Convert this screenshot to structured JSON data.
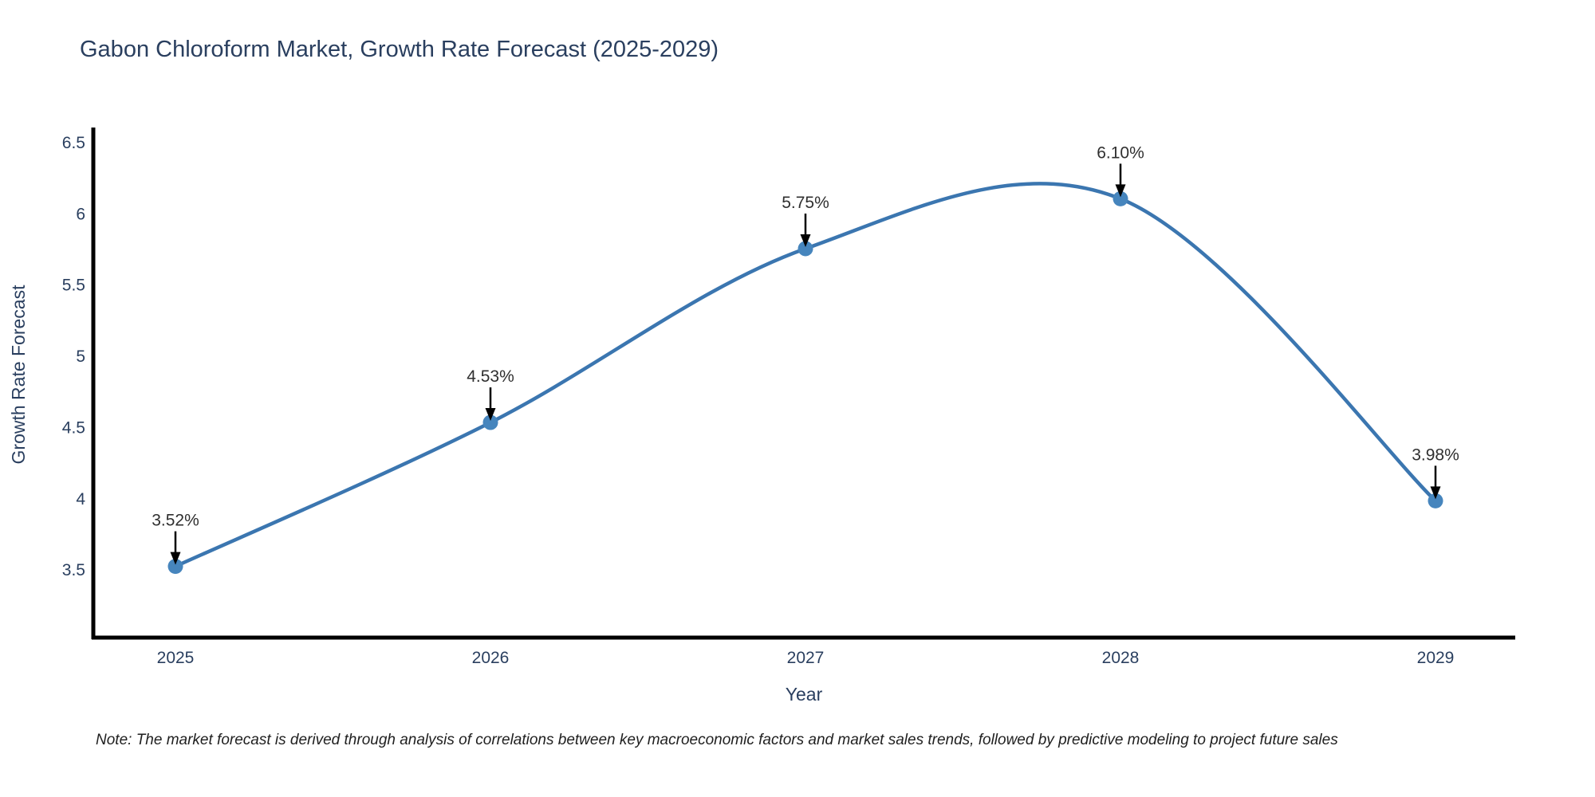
{
  "page": {
    "note": "Note: The market forecast is derived through analysis of correlations between key macroeconomic factors and market sales trends, followed by predictive modeling to project future sales"
  },
  "chart_data": {
    "type": "line",
    "title": "Gabon Chloroform Market, Growth Rate Forecast (2025-2029)",
    "x": [
      "2025",
      "2026",
      "2027",
      "2028",
      "2029"
    ],
    "values": [
      3.52,
      4.53,
      5.75,
      6.1,
      3.98
    ],
    "point_labels": [
      "3.52%",
      "4.53%",
      "5.75%",
      "6.10%",
      "3.98%"
    ],
    "xlabel": "Year",
    "ylabel": "Growth Rate Forecast",
    "yticks": [
      "3.5",
      "4",
      "4.5",
      "5",
      "5.5",
      "6",
      "6.5"
    ],
    "ytick_values": [
      3.5,
      4,
      4.5,
      5,
      5.5,
      6,
      6.5
    ],
    "ylim": [
      3.02,
      6.6
    ],
    "line_shape": "spline",
    "grid": false,
    "legend": "none",
    "marker_style": "circle",
    "annotation_arrow": "down",
    "colors": {
      "line": "#3b76b0",
      "marker": "#4685bd",
      "axis": "#000000",
      "axis_text": "#2a3f5f",
      "annotation_text": "#2f2f2f",
      "background": "#ffffff"
    }
  }
}
